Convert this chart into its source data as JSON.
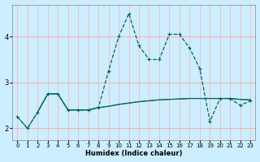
{
  "xlabel": "Humidex (Indice chaleur)",
  "background_color": "#cceeff",
  "grid_color_major": "#ffaaaa",
  "grid_color_minor": "#cceeee",
  "line_color": "#006655",
  "xlim": [
    -0.5,
    23.5
  ],
  "ylim": [
    1.75,
    4.7
  ],
  "yticks": [
    2,
    3,
    4
  ],
  "xticks": [
    0,
    1,
    2,
    3,
    4,
    5,
    6,
    7,
    8,
    9,
    10,
    11,
    12,
    13,
    14,
    15,
    16,
    17,
    18,
    19,
    20,
    21,
    22,
    23
  ],
  "series1_x": [
    0,
    1,
    2,
    3,
    4,
    5,
    6,
    7,
    8,
    9,
    10,
    11,
    12,
    13,
    14,
    15,
    16,
    17,
    18,
    19,
    20,
    21,
    22,
    23
  ],
  "series1_y": [
    2.25,
    2.0,
    2.35,
    2.75,
    2.75,
    2.4,
    2.4,
    2.4,
    2.45,
    3.25,
    4.0,
    4.5,
    3.8,
    3.5,
    3.5,
    4.05,
    4.05,
    3.75,
    3.3,
    2.15,
    2.65,
    2.65,
    2.5,
    2.6
  ],
  "series2_x": [
    2,
    3,
    4,
    5,
    6,
    7,
    8,
    9,
    10,
    11,
    12,
    13,
    14,
    15,
    16,
    17,
    18,
    19,
    20,
    21,
    22,
    23
  ],
  "series2_y": [
    2.35,
    2.75,
    2.75,
    2.4,
    2.4,
    2.4,
    2.45,
    2.48,
    2.52,
    2.55,
    2.58,
    2.6,
    2.62,
    2.63,
    2.64,
    2.65,
    2.65,
    2.65,
    2.65,
    2.65,
    2.63,
    2.62
  ],
  "series3_x": [
    0,
    1,
    2,
    3,
    4,
    5,
    6,
    7,
    8,
    9,
    10,
    11,
    12,
    13,
    14,
    15,
    16,
    17,
    18,
    19,
    20,
    21,
    22,
    23
  ],
  "series3_y": [
    2.25,
    2.0,
    2.35,
    2.75,
    2.75,
    2.4,
    2.4,
    2.4,
    2.45,
    2.48,
    2.52,
    2.55,
    2.58,
    2.6,
    2.62,
    2.63,
    2.64,
    2.65,
    2.65,
    2.65,
    2.65,
    2.65,
    2.63,
    2.62
  ]
}
